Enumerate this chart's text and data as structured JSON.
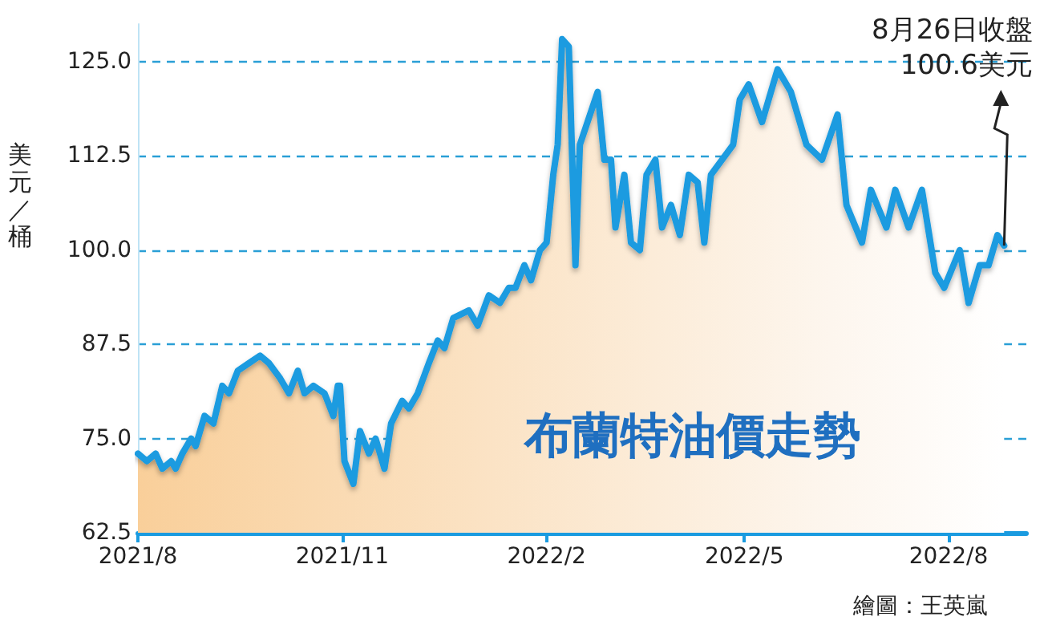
{
  "chart_data": {
    "type": "area",
    "title": "布蘭特油價走勢",
    "ylabel": "美元／桶",
    "x": [
      "2021-08-01",
      "2021-08-05",
      "2021-08-09",
      "2021-08-12",
      "2021-08-16",
      "2021-08-18",
      "2021-08-21",
      "2021-08-25",
      "2021-08-27",
      "2021-08-31",
      "2021-09-04",
      "2021-09-08",
      "2021-09-11",
      "2021-09-15",
      "2021-09-20",
      "2021-09-25",
      "2021-09-29",
      "2021-10-04",
      "2021-10-08",
      "2021-10-12",
      "2021-10-15",
      "2021-10-19",
      "2021-10-24",
      "2021-10-28",
      "2021-10-30",
      "2021-10-31",
      "2021-11-02",
      "2021-11-06",
      "2021-11-09",
      "2021-11-13",
      "2021-11-16",
      "2021-11-20",
      "2021-11-23",
      "2021-11-28",
      "2021-12-01",
      "2021-12-05",
      "2021-12-10",
      "2021-12-14",
      "2021-12-17",
      "2021-12-21",
      "2021-12-28",
      "2022-01-01",
      "2022-01-06",
      "2022-01-11",
      "2022-01-15",
      "2022-01-18",
      "2022-01-22",
      "2022-01-25",
      "2022-01-29",
      "2022-02-01",
      "2022-02-04",
      "2022-02-06",
      "2022-02-08",
      "2022-02-11",
      "2022-02-14",
      "2022-02-16",
      "2022-02-24",
      "2022-02-27",
      "2022-03-02",
      "2022-03-04",
      "2022-03-08",
      "2022-03-11",
      "2022-03-15",
      "2022-03-18",
      "2022-03-22",
      "2022-03-25",
      "2022-03-29",
      "2022-04-02",
      "2022-04-06",
      "2022-04-10",
      "2022-04-13",
      "2022-04-16",
      "2022-04-21",
      "2022-04-26",
      "2022-04-29",
      "2022-05-03",
      "2022-05-09",
      "2022-05-16",
      "2022-05-22",
      "2022-05-29",
      "2022-06-05",
      "2022-06-12",
      "2022-06-16",
      "2022-06-23",
      "2022-06-27",
      "2022-07-04",
      "2022-07-08",
      "2022-07-14",
      "2022-07-20",
      "2022-07-26",
      "2022-07-30",
      "2022-08-06",
      "2022-08-10",
      "2022-08-15",
      "2022-08-19",
      "2022-08-23",
      "2022-08-26"
    ],
    "series": [
      {
        "color": "#1a9be0",
        "values": [
          73,
          72,
          73,
          71,
          72,
          71,
          73,
          75,
          74,
          78,
          77,
          82,
          81,
          84,
          85,
          86,
          85,
          83,
          81,
          84,
          81,
          82,
          81,
          78,
          82,
          82,
          72,
          69,
          76,
          73,
          75,
          71,
          77,
          80,
          79,
          81,
          85,
          88,
          87,
          91,
          92,
          90,
          94,
          93,
          95,
          95,
          98,
          96,
          100,
          101,
          110,
          114,
          128,
          127,
          98,
          114,
          121,
          112,
          112,
          103,
          110,
          101,
          100,
          110,
          112,
          103,
          106,
          102,
          110,
          109,
          101,
          110,
          112,
          114,
          120,
          122,
          117,
          124,
          121,
          114,
          112,
          118,
          106,
          101,
          108,
          103,
          108,
          103,
          108,
          97,
          95,
          100,
          93,
          98,
          98,
          102,
          100.6
        ]
      }
    ],
    "xlim": [
      "2021-08-01",
      "2022-09-05"
    ],
    "xticks": [
      {
        "value": "2021-08",
        "label": "2021/8"
      },
      {
        "value": "2021-11",
        "label": "2021/11"
      },
      {
        "value": "2022-02",
        "label": "2022/2"
      },
      {
        "value": "2022-05",
        "label": "2022/5"
      },
      {
        "value": "2022-08",
        "label": "2022/8"
      }
    ],
    "ylim": [
      62.5,
      130
    ],
    "yticks": [
      {
        "value": 62.5,
        "label": "62.5"
      },
      {
        "value": 75,
        "label": "75.0"
      },
      {
        "value": 87.5,
        "label": "87.5"
      },
      {
        "value": 100,
        "label": "100.0"
      },
      {
        "value": 112.5,
        "label": "112.5"
      },
      {
        "value": 125,
        "label": "125.0"
      }
    ],
    "grid": "y",
    "marker": "none",
    "line_style": "solid",
    "annotations": [
      {
        "text": "8月26日收盤\n100.6美元",
        "x": "2022-08-26",
        "y": 100.6
      },
      "繪圖：王英嵐"
    ]
  }
}
